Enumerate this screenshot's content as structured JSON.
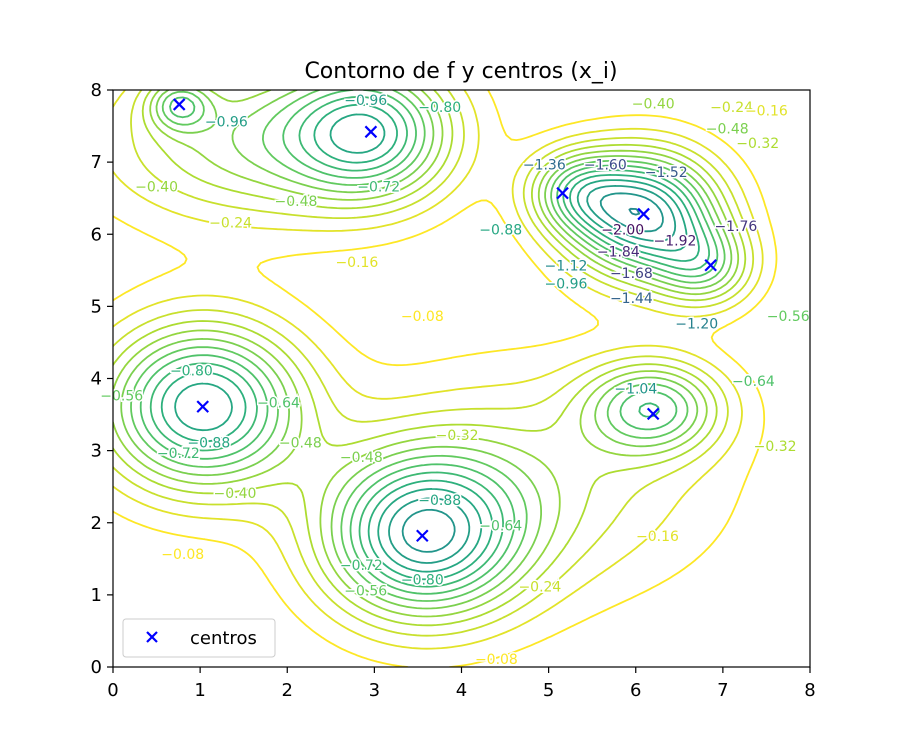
{
  "chart_data": {
    "type": "contour",
    "title": "Contorno de f y centros (x_i)",
    "xlabel": "",
    "ylabel": "",
    "xlim": [
      0,
      8
    ],
    "ylim": [
      0,
      8
    ],
    "x_ticks": [
      "0",
      "1",
      "2",
      "3",
      "4",
      "5",
      "6",
      "7",
      "8"
    ],
    "y_ticks": [
      "0",
      "1",
      "2",
      "3",
      "4",
      "5",
      "6",
      "7",
      "8"
    ],
    "grid": false,
    "legend": {
      "position": "lower-left",
      "entries": [
        "centros"
      ]
    },
    "colormap": "viridis",
    "contour_levels": [
      -2.0,
      -1.92,
      -1.84,
      -1.76,
      -1.68,
      -1.6,
      -1.52,
      -1.44,
      -1.36,
      -1.28,
      -1.2,
      -1.12,
      -1.04,
      -0.96,
      -0.88,
      -0.8,
      -0.72,
      -0.64,
      -0.56,
      -0.48,
      -0.4,
      -0.32,
      -0.24,
      -0.16,
      -0.08
    ],
    "level_range": [
      -2.08,
      -0.08
    ],
    "contour_labels": [
      {
        "text": "−0.96",
        "x": 1.3,
        "y": 7.55
      },
      {
        "text": "−0.96",
        "x": 2.9,
        "y": 7.85
      },
      {
        "text": "−0.80",
        "x": 3.75,
        "y": 7.75
      },
      {
        "text": "−0.40",
        "x": 6.2,
        "y": 7.8
      },
      {
        "text": "−0.24",
        "x": 7.1,
        "y": 7.75
      },
      {
        "text": "−0.16",
        "x": 7.5,
        "y": 7.7
      },
      {
        "text": "−0.48",
        "x": 7.05,
        "y": 7.45
      },
      {
        "text": "−0.32",
        "x": 7.4,
        "y": 7.25
      },
      {
        "text": "−1.60",
        "x": 5.65,
        "y": 6.95
      },
      {
        "text": "−1.52",
        "x": 6.35,
        "y": 6.85
      },
      {
        "text": "−1.36",
        "x": 4.95,
        "y": 6.95
      },
      {
        "text": "−0.40",
        "x": 0.5,
        "y": 6.65
      },
      {
        "text": "−0.72",
        "x": 3.05,
        "y": 6.65
      },
      {
        "text": "−0.48",
        "x": 2.1,
        "y": 6.45
      },
      {
        "text": "−0.24",
        "x": 1.35,
        "y": 6.15
      },
      {
        "text": "−0.88",
        "x": 4.45,
        "y": 6.05
      },
      {
        "text": "−2.00",
        "x": 5.85,
        "y": 6.05
      },
      {
        "text": "−1.92",
        "x": 6.45,
        "y": 5.9
      },
      {
        "text": "−1.76",
        "x": 7.15,
        "y": 6.1
      },
      {
        "text": "−1.84",
        "x": 5.8,
        "y": 5.75
      },
      {
        "text": "−1.68",
        "x": 5.95,
        "y": 5.45
      },
      {
        "text": "−1.12",
        "x": 5.2,
        "y": 5.55
      },
      {
        "text": "−0.96",
        "x": 5.2,
        "y": 5.3
      },
      {
        "text": "−1.44",
        "x": 5.95,
        "y": 5.1
      },
      {
        "text": "−0.16",
        "x": 2.8,
        "y": 5.6
      },
      {
        "text": "−0.08",
        "x": 3.55,
        "y": 4.85
      },
      {
        "text": "−1.20",
        "x": 6.7,
        "y": 4.75
      },
      {
        "text": "−0.56",
        "x": 7.75,
        "y": 4.85
      },
      {
        "text": "−0.80",
        "x": 0.9,
        "y": 4.1
      },
      {
        "text": "−0.56",
        "x": 0.1,
        "y": 3.75
      },
      {
        "text": "−0.64",
        "x": 1.9,
        "y": 3.65
      },
      {
        "text": "−1.04",
        "x": 6.0,
        "y": 3.85
      },
      {
        "text": "−0.64",
        "x": 7.35,
        "y": 3.95
      },
      {
        "text": "−0.88",
        "x": 1.1,
        "y": 3.1
      },
      {
        "text": "−0.72",
        "x": 0.75,
        "y": 2.95
      },
      {
        "text": "−0.48",
        "x": 2.15,
        "y": 3.1
      },
      {
        "text": "−0.32",
        "x": 3.95,
        "y": 3.2
      },
      {
        "text": "−0.48",
        "x": 2.85,
        "y": 2.9
      },
      {
        "text": "−0.32",
        "x": 7.6,
        "y": 3.05
      },
      {
        "text": "−0.40",
        "x": 1.4,
        "y": 2.4
      },
      {
        "text": "−0.88",
        "x": 3.75,
        "y": 2.3
      },
      {
        "text": "−0.64",
        "x": 4.45,
        "y": 1.95
      },
      {
        "text": "−0.72",
        "x": 2.85,
        "y": 1.4
      },
      {
        "text": "−0.16",
        "x": 6.25,
        "y": 1.8
      },
      {
        "text": "−0.80",
        "x": 3.55,
        "y": 1.2
      },
      {
        "text": "−0.56",
        "x": 2.9,
        "y": 1.05
      },
      {
        "text": "−0.24",
        "x": 4.9,
        "y": 1.1
      },
      {
        "text": "−0.08",
        "x": 0.8,
        "y": 1.55
      },
      {
        "text": "−0.08",
        "x": 4.4,
        "y": 0.1
      }
    ],
    "series": [
      {
        "name": "centros",
        "marker": "x",
        "color": "#0000ff",
        "points": [
          {
            "x": 0.76,
            "y": 7.8
          },
          {
            "x": 2.96,
            "y": 7.42
          },
          {
            "x": 5.16,
            "y": 6.57
          },
          {
            "x": 6.09,
            "y": 6.28
          },
          {
            "x": 6.86,
            "y": 5.57
          },
          {
            "x": 6.2,
            "y": 3.51
          },
          {
            "x": 1.03,
            "y": 3.61
          },
          {
            "x": 3.55,
            "y": 1.82
          }
        ]
      }
    ]
  }
}
